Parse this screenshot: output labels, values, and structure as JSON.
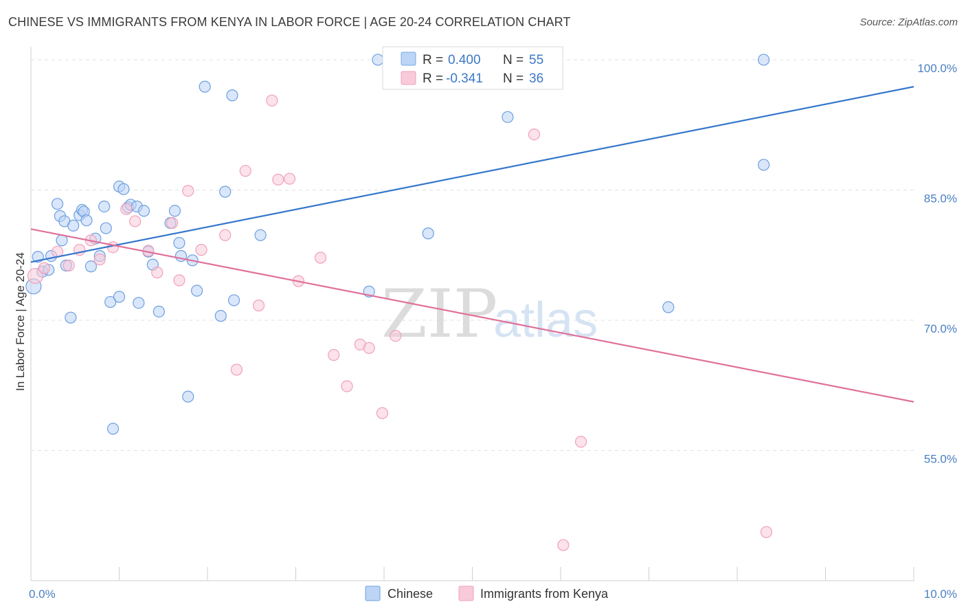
{
  "title": "CHINESE VS IMMIGRANTS FROM KENYA IN LABOR FORCE | AGE 20-24 CORRELATION CHART",
  "source": "Source: ZipAtlas.com",
  "watermark": {
    "zip": "ZIP",
    "atlas": "atlas"
  },
  "legend": {
    "r_label": "R =",
    "n_label": "N =",
    "rows": [
      {
        "r": "0.400",
        "n": "55",
        "color": "#7aa9e8",
        "fill": "#bcd4f5"
      },
      {
        "r": "-0.341",
        "n": "36",
        "color": "#f0a0ba",
        "fill": "#f9cad9"
      }
    ]
  },
  "chart_data": {
    "type": "scatter",
    "xlabel": "",
    "ylabel": "In Labor Force | Age 20-24",
    "xlim": [
      0,
      10
    ],
    "ylim": [
      40,
      101.5
    ],
    "x_tick_labels": [
      {
        "value": 0,
        "label": "0.0%"
      },
      {
        "value": 10,
        "label": "10.0%"
      }
    ],
    "y_tick_labels": [
      {
        "value": 55,
        "label": "55.0%"
      },
      {
        "value": 70,
        "label": "70.0%"
      },
      {
        "value": 85,
        "label": "85.0%"
      },
      {
        "value": 100,
        "label": "100.0%"
      }
    ],
    "grid": true,
    "legend_position": "top-center",
    "series": [
      {
        "name": "Chinese",
        "color": "#6b9fe0",
        "fill": "#bcd4f5",
        "line_color": "#3376cc",
        "trend": {
          "x0": 0.0,
          "y0": 76.7,
          "x1": 10.0,
          "y1": 96.9
        },
        "points": [
          [
            0.03,
            73.9
          ],
          [
            0.08,
            77.3
          ],
          [
            0.13,
            75.6
          ],
          [
            0.2,
            75.8
          ],
          [
            0.23,
            77.4
          ],
          [
            0.3,
            83.4
          ],
          [
            0.33,
            82.0
          ],
          [
            0.35,
            79.2
          ],
          [
            0.38,
            81.4
          ],
          [
            0.4,
            76.3
          ],
          [
            0.45,
            70.3
          ],
          [
            0.48,
            80.9
          ],
          [
            0.55,
            82.1
          ],
          [
            0.58,
            82.7
          ],
          [
            0.6,
            82.5
          ],
          [
            0.63,
            81.5
          ],
          [
            0.68,
            76.2
          ],
          [
            0.73,
            79.4
          ],
          [
            0.78,
            77.4
          ],
          [
            0.83,
            83.1
          ],
          [
            0.85,
            80.6
          ],
          [
            0.9,
            72.1
          ],
          [
            0.93,
            57.5
          ],
          [
            1.0,
            72.7
          ],
          [
            1.0,
            85.4
          ],
          [
            1.05,
            85.1
          ],
          [
            1.1,
            83.0
          ],
          [
            1.13,
            83.3
          ],
          [
            1.2,
            83.1
          ],
          [
            1.22,
            72.0
          ],
          [
            1.28,
            82.6
          ],
          [
            1.33,
            77.9
          ],
          [
            1.38,
            76.4
          ],
          [
            1.45,
            71.0
          ],
          [
            1.58,
            81.2
          ],
          [
            1.63,
            82.6
          ],
          [
            1.68,
            78.9
          ],
          [
            1.7,
            77.4
          ],
          [
            1.78,
            61.2
          ],
          [
            1.83,
            76.9
          ],
          [
            1.88,
            73.4
          ],
          [
            1.97,
            96.9
          ],
          [
            2.15,
            70.5
          ],
          [
            2.2,
            84.8
          ],
          [
            2.28,
            95.9
          ],
          [
            2.3,
            72.3
          ],
          [
            2.6,
            79.8
          ],
          [
            3.83,
            73.3
          ],
          [
            3.93,
            100.0
          ],
          [
            4.48,
            100.0
          ],
          [
            4.5,
            80.0
          ],
          [
            5.4,
            93.4
          ],
          [
            7.22,
            71.5
          ],
          [
            8.3,
            87.9
          ],
          [
            8.3,
            100.0
          ]
        ]
      },
      {
        "name": "Immigrants from Kenya",
        "color": "#f0a0ba",
        "fill": "#f9cad9",
        "line_color": "#e0709a",
        "trend": {
          "x0": 0.0,
          "y0": 80.5,
          "x1": 10.0,
          "y1": 60.6
        },
        "points": [
          [
            0.05,
            75.1
          ],
          [
            0.15,
            76.0
          ],
          [
            0.3,
            77.9
          ],
          [
            0.43,
            76.3
          ],
          [
            0.55,
            78.1
          ],
          [
            0.68,
            79.2
          ],
          [
            0.78,
            77.0
          ],
          [
            0.93,
            78.4
          ],
          [
            1.08,
            82.8
          ],
          [
            1.18,
            81.4
          ],
          [
            1.33,
            78.0
          ],
          [
            1.43,
            75.5
          ],
          [
            1.6,
            81.2
          ],
          [
            1.68,
            74.6
          ],
          [
            1.78,
            84.9
          ],
          [
            1.93,
            78.1
          ],
          [
            2.2,
            79.8
          ],
          [
            2.33,
            64.3
          ],
          [
            2.43,
            87.2
          ],
          [
            2.58,
            71.7
          ],
          [
            2.73,
            95.3
          ],
          [
            2.8,
            86.2
          ],
          [
            2.93,
            86.3
          ],
          [
            3.03,
            74.5
          ],
          [
            3.28,
            77.2
          ],
          [
            3.43,
            66.0
          ],
          [
            3.58,
            62.4
          ],
          [
            3.73,
            67.2
          ],
          [
            3.83,
            66.8
          ],
          [
            3.98,
            59.3
          ],
          [
            4.13,
            68.2
          ],
          [
            5.43,
            100.0
          ],
          [
            5.7,
            91.4
          ],
          [
            6.03,
            44.1
          ],
          [
            6.23,
            56.0
          ],
          [
            8.33,
            45.6
          ]
        ]
      }
    ]
  }
}
